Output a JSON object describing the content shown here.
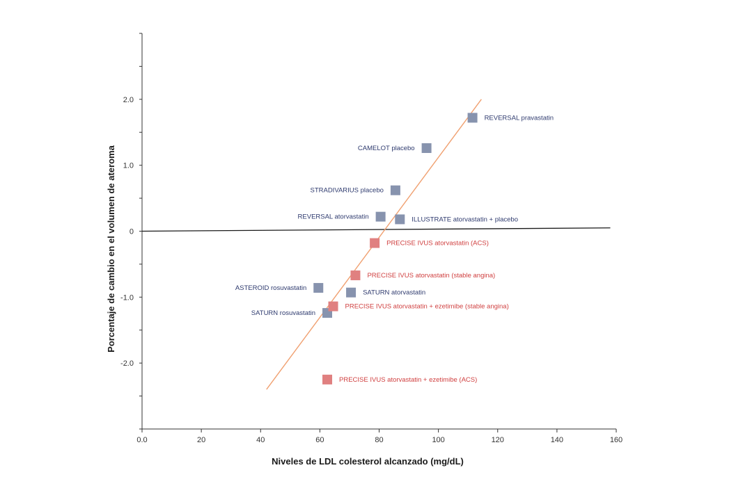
{
  "chart_data": {
    "type": "scatter",
    "title": "",
    "xlabel": "Niveles de LDL colesterol alcanzado (mg/dL)",
    "ylabel": "Porcentaje de cambio en el volumen de ateroma",
    "xlim": [
      0,
      160
    ],
    "ylim": [
      -3.0,
      3.0
    ],
    "x_ticks": [
      0,
      20,
      40,
      60,
      80,
      100,
      120,
      140,
      160
    ],
    "x_tick_labels": [
      "0.0",
      "20",
      "40",
      "60",
      "80",
      "100",
      "120",
      "140",
      "160"
    ],
    "y_ticks": [
      2.0,
      1.0,
      0,
      -1.0,
      -2.0
    ],
    "y_tick_labels": [
      "2.0",
      "1.0",
      "0",
      "-1.0",
      "-2.0"
    ],
    "grid": false,
    "series": [
      {
        "color": "#8793ae",
        "points": [
          {
            "x": 111.5,
            "y": 1.72,
            "label": "REVERSAL pravastatin",
            "label_side": "right"
          },
          {
            "x": 96,
            "y": 1.26,
            "label": "CAMELOT placebo",
            "label_side": "left"
          },
          {
            "x": 85.5,
            "y": 0.62,
            "label": "STRADIVARIUS placebo",
            "label_side": "left"
          },
          {
            "x": 80.5,
            "y": 0.22,
            "label": "REVERSAL atorvastatin",
            "label_side": "left"
          },
          {
            "x": 87,
            "y": 0.18,
            "label": "ILLUSTRATE atorvastatin + placebo",
            "label_side": "right"
          },
          {
            "x": 59.5,
            "y": -0.86,
            "label": "ASTEROID rosuvastatin",
            "label_side": "left"
          },
          {
            "x": 70.5,
            "y": -0.93,
            "label": "SATURN atorvastatin",
            "label_side": "right"
          },
          {
            "x": 62.5,
            "y": -1.24,
            "label": "SATURN rosuvastatin",
            "label_side": "left"
          }
        ]
      },
      {
        "color": "#e08080",
        "points": [
          {
            "x": 78.5,
            "y": -0.18,
            "label": "PRECISE IVUS  atorvastatin (ACS)",
            "label_side": "right"
          },
          {
            "x": 72,
            "y": -0.67,
            "label": "PRECISE IVUS  atorvastatin (stable angina)",
            "label_side": "right"
          },
          {
            "x": 64.5,
            "y": -1.14,
            "label": "PRECISE IVUS  atorvastatin + ezetimibe (stable angina)",
            "label_side": "right"
          },
          {
            "x": 62.5,
            "y": -2.25,
            "label": "PRECISE IVUS  atorvastatin + ezetimibe (ACS)",
            "label_side": "right"
          }
        ]
      }
    ],
    "reference_line": {
      "x": [
        0,
        158
      ],
      "y": [
        0,
        0.05
      ],
      "color": "#1a1a1a"
    },
    "regression_line": {
      "x": [
        42,
        114.5
      ],
      "y": [
        -2.4,
        2.0
      ],
      "color": "#f0a070"
    },
    "label_colors": {
      "blue": "#2e3a6e",
      "red": "#d04040"
    }
  }
}
